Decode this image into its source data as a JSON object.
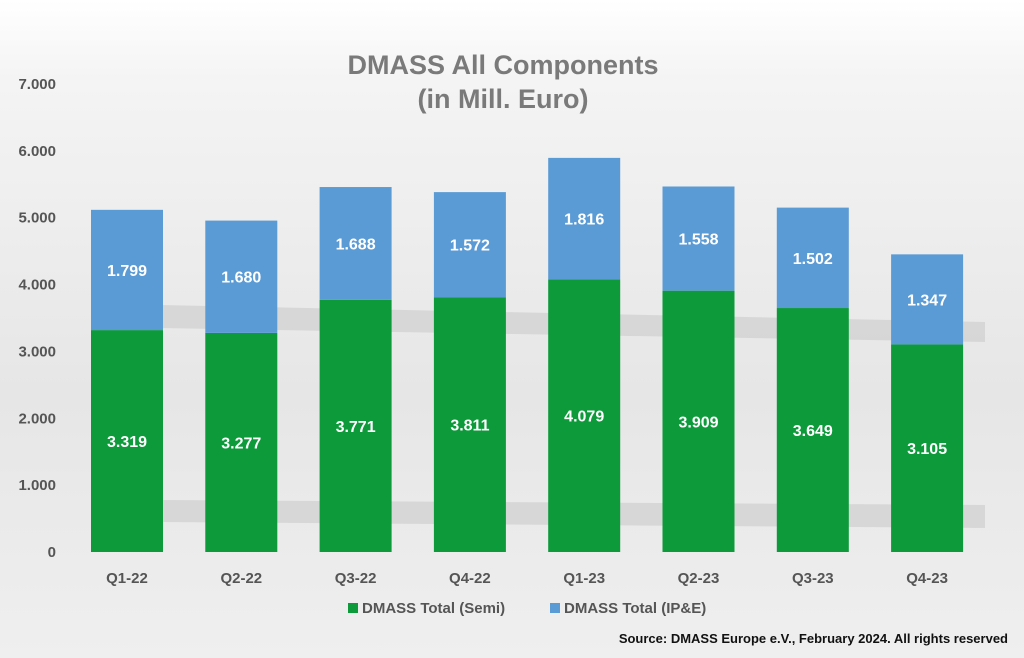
{
  "chart_data": {
    "type": "bar",
    "stacked": true,
    "title": [
      "DMASS All Components",
      "(in Mill. Euro)"
    ],
    "categories": [
      "Q1-22",
      "Q2-22",
      "Q3-22",
      "Q4-22",
      "Q1-23",
      "Q2-23",
      "Q3-23",
      "Q4-23"
    ],
    "series": [
      {
        "name": "DMASS Total (Semi)",
        "color": "#0c9a3a",
        "values": [
          3319,
          3277,
          3771,
          3811,
          4079,
          3909,
          3649,
          3105
        ],
        "labels": [
          "3.319",
          "3.277",
          "3.771",
          "3.811",
          "4.079",
          "3.909",
          "3.649",
          "3.105"
        ]
      },
      {
        "name": "DMASS Total (IP&E)",
        "color": "#5b9bd5",
        "values": [
          1799,
          1680,
          1688,
          1572,
          1816,
          1558,
          1502,
          1347
        ],
        "labels": [
          "1.799",
          "1.680",
          "1.688",
          "1.572",
          "1.816",
          "1.558",
          "1.502",
          "1.347"
        ]
      }
    ],
    "ylim": [
      0,
      7000
    ],
    "yticks": [
      0,
      1000,
      2000,
      3000,
      4000,
      5000,
      6000,
      7000
    ],
    "ytick_labels": [
      "0",
      "1.000",
      "2.000",
      "3.000",
      "4.000",
      "5.000",
      "6.000",
      "7.000"
    ],
    "grid": false,
    "legend_position": "bottom-center",
    "source": "Source: DMASS Europe e.V., February 2024. All rights reserved"
  }
}
